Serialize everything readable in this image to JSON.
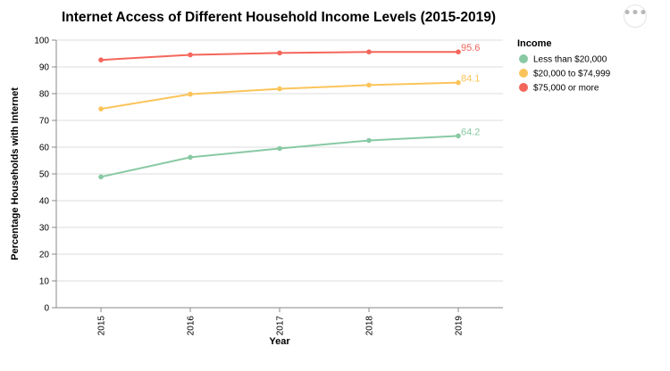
{
  "menu": {
    "icon": "more-horizontal-icon",
    "glyph": "•••"
  },
  "chart_data": {
    "type": "line",
    "title": "Internet Access of Different Household Income Levels (2015-2019)",
    "xlabel": "Year",
    "ylabel": "Percentage Households with Internet",
    "x": [
      "2015",
      "2016",
      "2017",
      "2018",
      "2019"
    ],
    "ylim": [
      0,
      100
    ],
    "yticks": [
      0,
      10,
      20,
      30,
      40,
      50,
      60,
      70,
      80,
      90,
      100
    ],
    "grid": true,
    "legend": {
      "title": "Income",
      "placement": "right"
    },
    "series": [
      {
        "name": "Less than $20,000",
        "color": "#88c9a3",
        "values": [
          48.9,
          56.2,
          59.5,
          62.5,
          64.2
        ],
        "end_label": "64.2"
      },
      {
        "name": "$20,000 to $74,999",
        "color": "#fbc45a",
        "values": [
          74.3,
          79.8,
          81.8,
          83.2,
          84.1
        ],
        "end_label": "84.1"
      },
      {
        "name": "$75,000 or more",
        "color": "#f4665b",
        "values": [
          92.6,
          94.5,
          95.2,
          95.6,
          95.6
        ],
        "end_label": "95.6"
      }
    ]
  }
}
